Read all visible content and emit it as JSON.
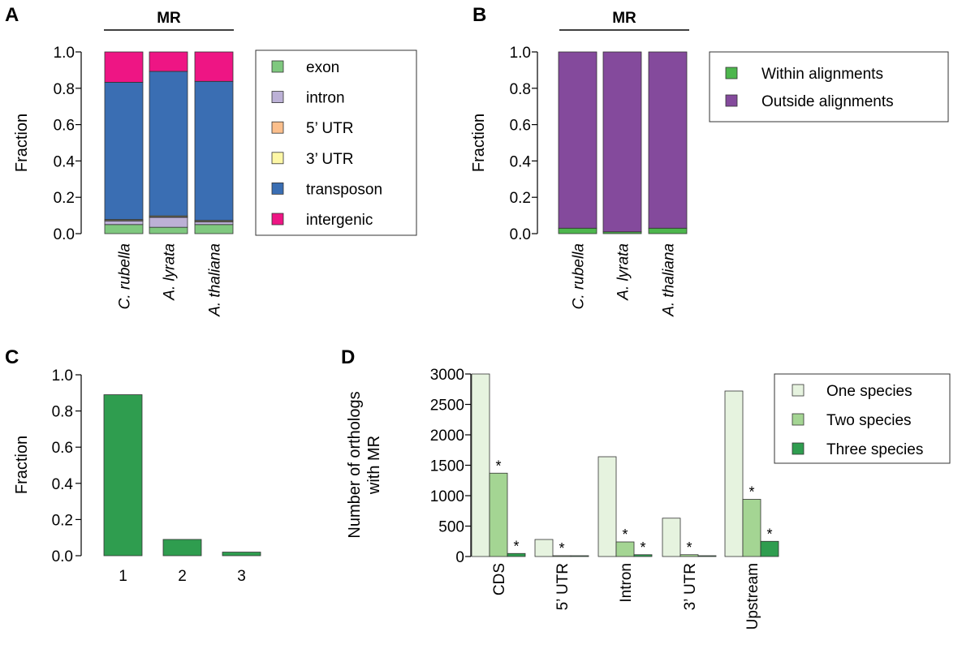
{
  "colors": {
    "exon": "#7fc87f",
    "intron": "#bcb1d6",
    "utr5": "#fbbf8c",
    "utr3": "#fdf7a6",
    "transposon": "#3a6eb3",
    "intergenic": "#ee1584",
    "within": "#4db64d",
    "outside": "#844a9c",
    "green_dark": "#2f9d4f",
    "green_light": "#e6f3df",
    "green_mid": "#a4d593",
    "green_deep": "#2f9d4f"
  },
  "panels": {
    "A": {
      "letter": "A",
      "group_label": "MR"
    },
    "B": {
      "letter": "B",
      "group_label": "MR"
    },
    "C": {
      "letter": "C"
    },
    "D": {
      "letter": "D"
    }
  },
  "chart_data": [
    {
      "id": "A",
      "type": "bar",
      "stacked": true,
      "categories": [
        "C. rubella",
        "A. lyrata",
        "A. thaliana"
      ],
      "ylabel": "Fraction",
      "ylim": [
        0,
        1
      ],
      "yticks": [
        "0.0",
        "0.2",
        "0.4",
        "0.6",
        "0.8",
        "1.0"
      ],
      "series": [
        {
          "name": "exon",
          "color_key": "exon",
          "values": [
            0.05,
            0.035,
            0.05
          ]
        },
        {
          "name": "intron",
          "color_key": "intron",
          "values": [
            0.02,
            0.055,
            0.015
          ]
        },
        {
          "name": "5’ UTR",
          "color_key": "utr5",
          "values": [
            0.003,
            0.003,
            0.003
          ]
        },
        {
          "name": "3’ UTR",
          "color_key": "utr3",
          "values": [
            0.005,
            0.005,
            0.005
          ]
        },
        {
          "name": "transposon",
          "color_key": "transposon",
          "values": [
            0.755,
            0.795,
            0.765
          ]
        },
        {
          "name": "intergenic",
          "color_key": "intergenic",
          "values": [
            0.167,
            0.107,
            0.162
          ]
        }
      ],
      "legend_position": "right"
    },
    {
      "id": "B",
      "type": "bar",
      "stacked": true,
      "categories": [
        "C. rubella",
        "A. lyrata",
        "A. thaliana"
      ],
      "ylabel": "Fraction",
      "ylim": [
        0,
        1
      ],
      "yticks": [
        "0.0",
        "0.2",
        "0.4",
        "0.6",
        "0.8",
        "1.0"
      ],
      "series": [
        {
          "name": "Within alignments",
          "color_key": "within",
          "values": [
            0.03,
            0.01,
            0.03
          ]
        },
        {
          "name": "Outside alignments",
          "color_key": "outside",
          "values": [
            0.97,
            0.99,
            0.97
          ]
        }
      ],
      "legend_position": "right"
    },
    {
      "id": "C",
      "type": "bar",
      "categories": [
        "1",
        "2",
        "3"
      ],
      "values": [
        0.89,
        0.09,
        0.02
      ],
      "ylabel": "Fraction",
      "ylim": [
        0,
        1
      ],
      "yticks": [
        "0.0",
        "0.2",
        "0.4",
        "0.6",
        "0.8",
        "1.0"
      ],
      "color_key": "green_dark"
    },
    {
      "id": "D",
      "type": "bar",
      "grouped": true,
      "categories": [
        "CDS",
        "5’ UTR",
        "Intron",
        "3’ UTR",
        "Upstream"
      ],
      "ylabel": "Number of orthologs with MR",
      "ylabel_lines": [
        "Number of orthologs",
        "with MR"
      ],
      "ylim": [
        0,
        3000
      ],
      "yticks": [
        "0",
        "500",
        "1000",
        "1500",
        "2000",
        "2500",
        "3000"
      ],
      "series": [
        {
          "name": "One species",
          "color_key": "green_light",
          "values": [
            3000,
            280,
            1640,
            630,
            2720
          ],
          "stars": [
            false,
            false,
            false,
            false,
            false
          ]
        },
        {
          "name": "Two species",
          "color_key": "green_mid",
          "values": [
            1370,
            10,
            240,
            30,
            940
          ],
          "stars": [
            true,
            true,
            true,
            true,
            true
          ]
        },
        {
          "name": "Three species",
          "color_key": "green_deep",
          "values": [
            50,
            2,
            30,
            3,
            250
          ],
          "stars": [
            true,
            false,
            true,
            false,
            true
          ]
        }
      ],
      "star_label": "*",
      "legend_position": "top-right"
    }
  ]
}
